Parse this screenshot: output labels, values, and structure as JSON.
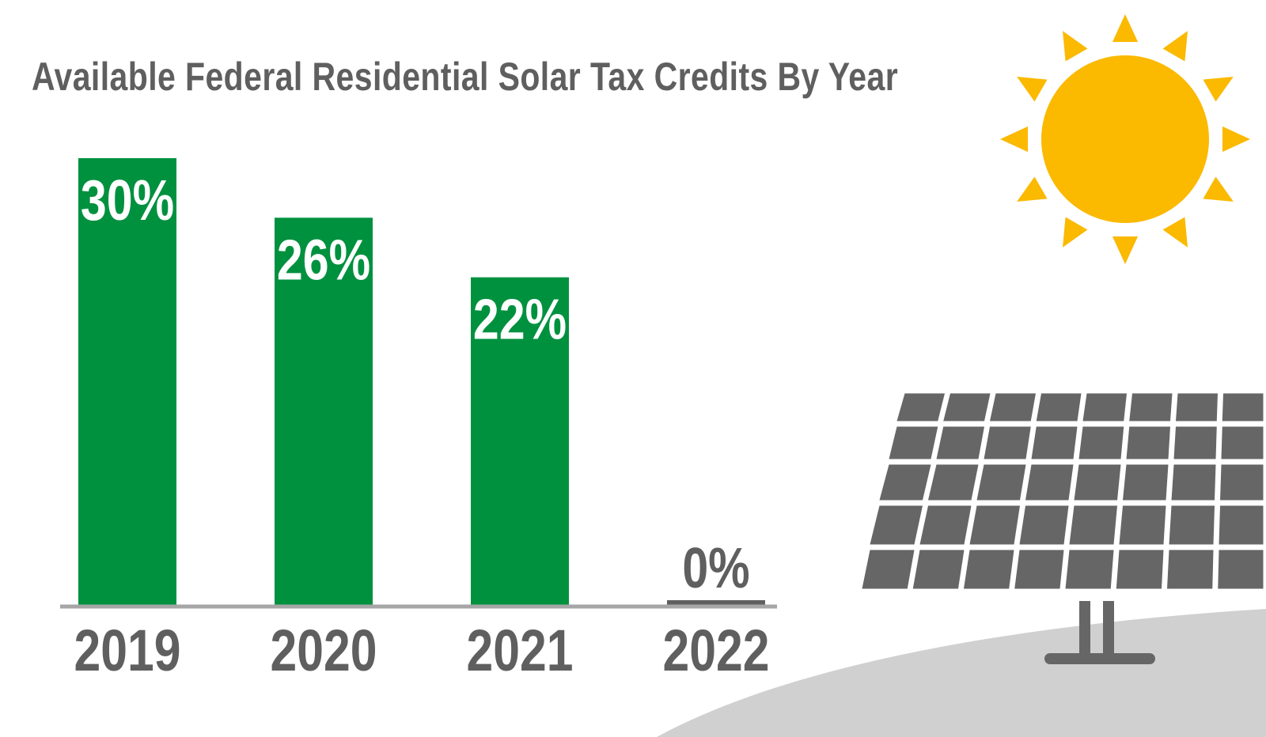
{
  "chart_data": {
    "type": "bar",
    "title": "Available Federal Residential Solar Tax Credits By Year",
    "categories": [
      "2019",
      "2020",
      "2021",
      "2022"
    ],
    "values": [
      30,
      26,
      22,
      0
    ],
    "value_labels": [
      "30%",
      "26%",
      "22%",
      "0%"
    ],
    "xlabel": "",
    "ylabel": "",
    "ylim": [
      0,
      30
    ],
    "grid": false,
    "legend": "none"
  },
  "colors": {
    "bar": "#00913f",
    "zero_bar": "#5f5f5f",
    "baseline": "#a6a6a6",
    "text": "#5f5f5f",
    "bar_label": "#ffffff",
    "sun": "#fbb900",
    "panel": "#666666",
    "ground": "#d0d0d0"
  },
  "illustration": {
    "icons": [
      "sun-icon",
      "solar-panel-icon"
    ]
  }
}
